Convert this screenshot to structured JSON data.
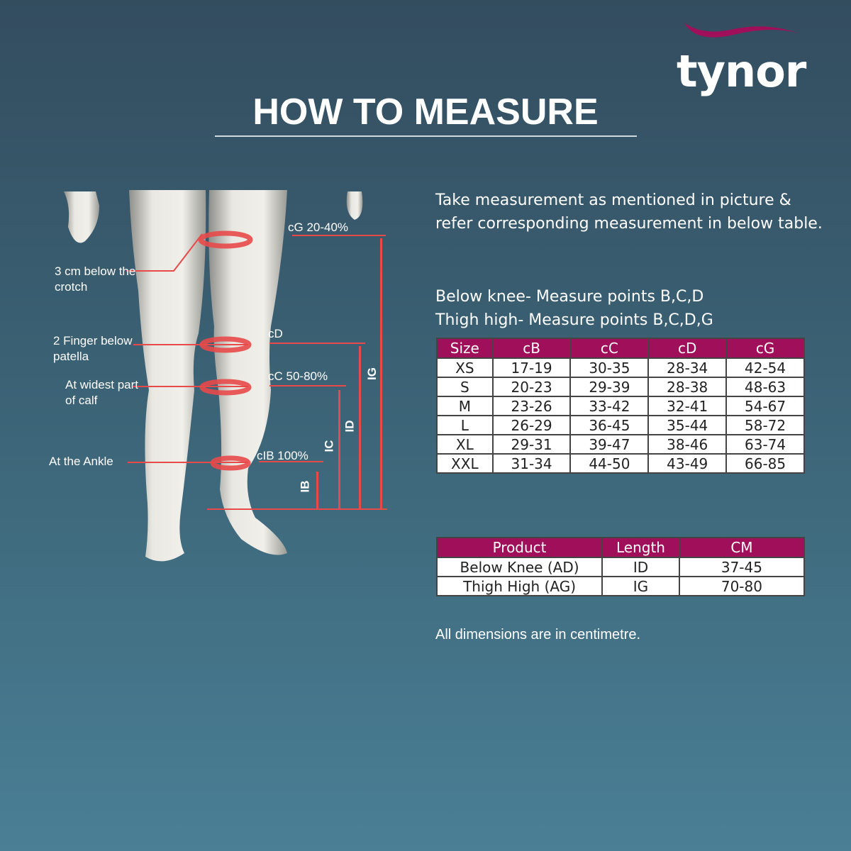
{
  "brand": {
    "name": "tynor",
    "accent": "#a0105a"
  },
  "title": "HOW TO MEASURE",
  "figure": {
    "labels": {
      "crotch": "3 cm below the crotch",
      "patella": "2 Finger below patella",
      "calf": "At widest part of calf",
      "ankle": "At the Ankle",
      "cG": "cG 20-40%",
      "cD": "cD",
      "cC": "cC 50-80%",
      "cB": "cIB 100%",
      "IB": "IB",
      "IC": "IC",
      "ID": "ID",
      "IG": "IG"
    }
  },
  "intro": "Take measurement as mentioned in picture & refer corresponding measurement in below table.",
  "points": {
    "below_knee": "Below knee- Measure points B,C,D",
    "thigh_high": "Thigh high- Measure points B,C,D,G"
  },
  "size_table": {
    "headers": [
      "Size",
      "cB",
      "cC",
      "cD",
      "cG"
    ],
    "rows": [
      [
        "XS",
        "17-19",
        "30-35",
        "28-34",
        "42-54"
      ],
      [
        "S",
        "20-23",
        "29-39",
        "28-38",
        "48-63"
      ],
      [
        "M",
        "23-26",
        "33-42",
        "32-41",
        "54-67"
      ],
      [
        "L",
        "26-29",
        "36-45",
        "35-44",
        "58-72"
      ],
      [
        "XL",
        "29-31",
        "39-47",
        "38-46",
        "63-74"
      ],
      [
        "XXL",
        "31-34",
        "44-50",
        "43-49",
        "66-85"
      ]
    ]
  },
  "product_table": {
    "headers": [
      "Product",
      "Length",
      "CM"
    ],
    "rows": [
      [
        "Below Knee (AD)",
        "ID",
        "37-45"
      ],
      [
        "Thigh High (AG)",
        "IG",
        "70-80"
      ]
    ]
  },
  "note": "All dimensions are in centimetre."
}
